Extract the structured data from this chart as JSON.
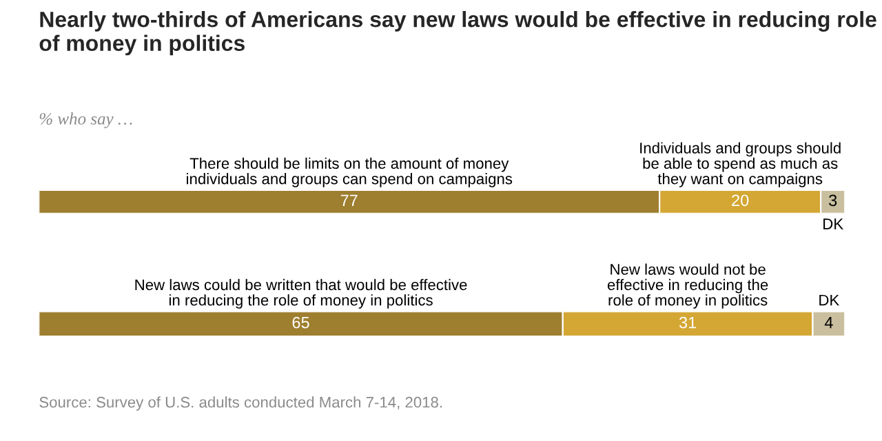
{
  "chart_data": [
    {
      "type": "bar",
      "orientation": "horizontal",
      "stacked": true,
      "title": "Nearly two-thirds of Americans say new laws would be effective in reducing role of money in politics",
      "subtitle": "% who say …",
      "categories": [
        null
      ],
      "xlim": [
        0,
        100
      ],
      "data_labels": true,
      "legend": false,
      "series": [
        {
          "name": "There should be limits on the amount of money\nindividuals and groups can spend on campaigns",
          "color": "#9e7e2f",
          "values": [
            77
          ]
        },
        {
          "name": "Individuals and groups should\nbe able to spend as much as\nthey want on campaigns",
          "color": "#d4a734",
          "values": [
            20
          ]
        },
        {
          "name": "DK",
          "color": "#c9bf9e",
          "values": [
            3
          ]
        }
      ]
    },
    {
      "type": "bar",
      "orientation": "horizontal",
      "stacked": true,
      "categories": [
        null
      ],
      "xlim": [
        0,
        100
      ],
      "data_labels": true,
      "legend": false,
      "annotations": [
        "Source: Survey of U.S. adults conducted March 7-14, 2018."
      ],
      "series": [
        {
          "name": "New laws could be written that would be effective\nin reducing the role of money in politics",
          "color": "#9e7e2f",
          "values": [
            65
          ]
        },
        {
          "name": "New laws would not be\neffective in reducing the\nrole of money in politics",
          "color": "#d4a734",
          "values": [
            31
          ]
        },
        {
          "name": "DK",
          "color": "#c9bf9e",
          "values": [
            4
          ]
        }
      ]
    }
  ]
}
